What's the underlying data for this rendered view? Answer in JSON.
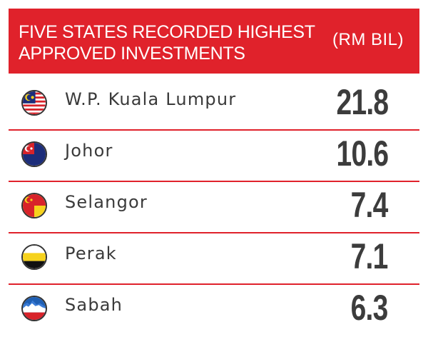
{
  "header": {
    "title": "FIVE STATES RECORDED HIGHEST\nAPPROVED INVESTMENTS",
    "unit": "(RM BIL)"
  },
  "colors": {
    "accent": "#e0222b",
    "text": "#3a3a3a"
  },
  "chart_data": {
    "type": "table",
    "title": "FIVE STATES RECORDED HIGHEST APPROVED INVESTMENTS",
    "unit": "(RM BIL)",
    "categories": [
      "W.P. Kuala Lumpur",
      "Johor",
      "Selangor",
      "Perak",
      "Sabah"
    ],
    "values": [
      21.8,
      10.6,
      7.4,
      7.1,
      6.3
    ]
  },
  "rows": [
    {
      "state": "W.P. Kuala Lumpur",
      "value": "21.8",
      "flag_icon": "kuala-lumpur-flag-icon"
    },
    {
      "state": "Johor",
      "value": "10.6",
      "flag_icon": "johor-flag-icon"
    },
    {
      "state": "Selangor",
      "value": "7.4",
      "flag_icon": "selangor-flag-icon"
    },
    {
      "state": "Perak",
      "value": "7.1",
      "flag_icon": "perak-flag-icon"
    },
    {
      "state": "Sabah",
      "value": "6.3",
      "flag_icon": "sabah-flag-icon"
    }
  ]
}
